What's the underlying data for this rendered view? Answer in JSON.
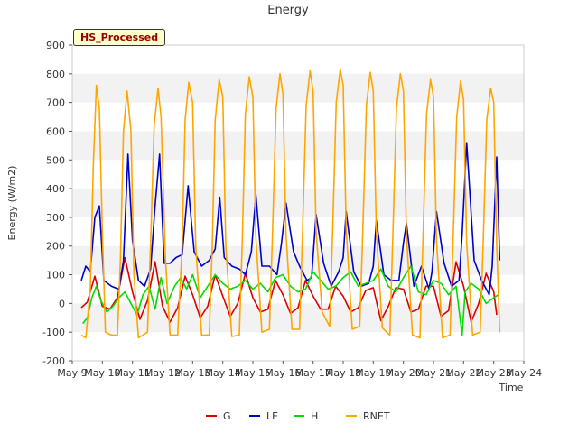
{
  "chart_data": {
    "type": "line",
    "title": "Energy",
    "xlabel": "Time",
    "ylabel": "Energy (W/m2)",
    "tag": "HS_Processed",
    "xlim": [
      9,
      24
    ],
    "ylim": [
      -200,
      900
    ],
    "x_ticks": [
      {
        "value": 9,
        "label": "May 9"
      },
      {
        "value": 10,
        "label": "May 10"
      },
      {
        "value": 11,
        "label": "May 11"
      },
      {
        "value": 12,
        "label": "May 12"
      },
      {
        "value": 13,
        "label": "May 13"
      },
      {
        "value": 14,
        "label": "May 14"
      },
      {
        "value": 15,
        "label": "May 15"
      },
      {
        "value": 16,
        "label": "May 16"
      },
      {
        "value": 17,
        "label": "May 17"
      },
      {
        "value": 18,
        "label": "May 18"
      },
      {
        "value": 19,
        "label": "May 19"
      },
      {
        "value": 20,
        "label": "May 20"
      },
      {
        "value": 21,
        "label": "May 21"
      },
      {
        "value": 22,
        "label": "May 22"
      },
      {
        "value": 23,
        "label": "May 23"
      },
      {
        "value": 24,
        "label": "May 24"
      }
    ],
    "y_ticks": [
      -200,
      -100,
      0,
      100,
      200,
      300,
      400,
      500,
      600,
      700,
      800,
      900
    ],
    "grid": "horizontal bands",
    "band_color": "#f2f2f2",
    "legend_position": "bottom",
    "series": [
      {
        "name": "G",
        "color": "#dd0000",
        "x": [
          9.3,
          9.5,
          9.75,
          10.0,
          10.25,
          10.5,
          10.75,
          11.0,
          11.25,
          11.5,
          11.75,
          12.0,
          12.25,
          12.5,
          12.75,
          13.0,
          13.25,
          13.5,
          13.75,
          14.0,
          14.25,
          14.5,
          14.75,
          15.0,
          15.25,
          15.5,
          15.75,
          16.0,
          16.25,
          16.5,
          16.75,
          17.0,
          17.25,
          17.5,
          17.75,
          18.0,
          18.25,
          18.5,
          18.75,
          19.0,
          19.25,
          19.5,
          19.75,
          20.0,
          20.25,
          20.5,
          20.75,
          21.0,
          21.25,
          21.5,
          21.75,
          22.0,
          22.25,
          22.5,
          22.75,
          23.0,
          23.1
        ],
        "y": [
          -15,
          5,
          95,
          -10,
          -20,
          20,
          160,
          40,
          -55,
          10,
          145,
          -10,
          -65,
          -15,
          95,
          30,
          -50,
          -10,
          100,
          25,
          -45,
          0,
          105,
          20,
          -30,
          -20,
          80,
          30,
          -35,
          -15,
          80,
          25,
          -20,
          -20,
          60,
          25,
          -30,
          -15,
          45,
          55,
          -60,
          -10,
          55,
          50,
          -30,
          -20,
          60,
          60,
          -45,
          -25,
          145,
          60,
          -65,
          0,
          105,
          40,
          -40
        ]
      },
      {
        "name": "LE",
        "color": "#0000cc",
        "x": [
          9.3,
          9.45,
          9.6,
          9.75,
          9.9,
          10.05,
          10.3,
          10.55,
          10.7,
          10.85,
          11.0,
          11.2,
          11.4,
          11.6,
          11.75,
          11.9,
          12.05,
          12.25,
          12.45,
          12.65,
          12.85,
          13.05,
          13.3,
          13.55,
          13.75,
          13.9,
          14.05,
          14.3,
          14.55,
          14.75,
          14.95,
          15.1,
          15.3,
          15.55,
          15.8,
          15.95,
          16.1,
          16.35,
          16.55,
          16.8,
          16.95,
          17.1,
          17.35,
          17.6,
          17.85,
          18.0,
          18.1,
          18.35,
          18.6,
          18.85,
          19.0,
          19.1,
          19.35,
          19.6,
          19.85,
          20.0,
          20.1,
          20.35,
          20.6,
          20.85,
          20.95,
          21.1,
          21.35,
          21.6,
          21.85,
          21.95,
          22.1,
          22.35,
          22.6,
          22.85,
          22.95,
          23.1,
          23.2
        ],
        "y": [
          80,
          130,
          110,
          300,
          340,
          80,
          60,
          50,
          150,
          520,
          220,
          80,
          60,
          120,
          340,
          520,
          140,
          140,
          160,
          170,
          410,
          180,
          130,
          150,
          190,
          370,
          160,
          130,
          120,
          100,
          180,
          380,
          130,
          130,
          100,
          210,
          350,
          180,
          130,
          80,
          90,
          310,
          140,
          60,
          110,
          160,
          320,
          110,
          60,
          70,
          130,
          290,
          100,
          80,
          80,
          210,
          280,
          60,
          130,
          50,
          110,
          320,
          140,
          60,
          80,
          240,
          560,
          150,
          80,
          30,
          130,
          510,
          150
        ]
      },
      {
        "name": "H",
        "color": "#00dd00",
        "x": [
          9.35,
          9.5,
          9.65,
          9.8,
          9.95,
          10.15,
          10.35,
          10.55,
          10.75,
          10.95,
          11.15,
          11.35,
          11.55,
          11.75,
          11.95,
          12.15,
          12.4,
          12.6,
          12.8,
          13.0,
          13.25,
          13.5,
          13.75,
          14.0,
          14.25,
          14.5,
          14.75,
          15.0,
          15.25,
          15.5,
          15.75,
          16.0,
          16.25,
          16.5,
          16.75,
          17.0,
          17.25,
          17.5,
          17.75,
          18.0,
          18.25,
          18.5,
          18.75,
          19.0,
          19.25,
          19.5,
          19.75,
          20.0,
          20.25,
          20.5,
          20.75,
          21.0,
          21.25,
          21.5,
          21.75,
          21.95,
          22.05,
          22.25,
          22.5,
          22.75,
          23.0,
          23.15
        ],
        "y": [
          -70,
          -50,
          20,
          60,
          10,
          -30,
          -10,
          20,
          40,
          0,
          -40,
          30,
          60,
          -20,
          90,
          0,
          60,
          90,
          50,
          100,
          20,
          60,
          100,
          70,
          50,
          60,
          80,
          50,
          70,
          40,
          90,
          100,
          60,
          40,
          50,
          110,
          80,
          50,
          60,
          90,
          110,
          60,
          70,
          80,
          120,
          60,
          40,
          90,
          130,
          40,
          30,
          80,
          70,
          30,
          60,
          -110,
          40,
          70,
          50,
          0,
          20,
          30
        ]
      },
      {
        "name": "RNET",
        "color": "#ffa500",
        "x": [
          9.3,
          9.45,
          9.6,
          9.7,
          9.8,
          9.9,
          10.0,
          10.1,
          10.3,
          10.5,
          10.6,
          10.7,
          10.82,
          10.95,
          11.05,
          11.2,
          11.5,
          11.6,
          11.72,
          11.85,
          11.95,
          12.1,
          12.25,
          12.5,
          12.65,
          12.75,
          12.87,
          13.0,
          13.1,
          13.3,
          13.55,
          13.65,
          13.75,
          13.88,
          14.0,
          14.1,
          14.3,
          14.55,
          14.65,
          14.75,
          14.88,
          15.0,
          15.1,
          15.3,
          15.55,
          15.65,
          15.77,
          15.9,
          16.0,
          16.1,
          16.3,
          16.55,
          16.65,
          16.77,
          16.9,
          17.0,
          17.1,
          17.3,
          17.55,
          17.65,
          17.77,
          17.9,
          18.0,
          18.1,
          18.3,
          18.55,
          18.65,
          18.77,
          18.9,
          19.0,
          19.1,
          19.3,
          19.55,
          19.65,
          19.77,
          19.9,
          20.0,
          20.1,
          20.3,
          20.55,
          20.65,
          20.77,
          20.9,
          21.0,
          21.1,
          21.3,
          21.55,
          21.65,
          21.77,
          21.9,
          22.0,
          22.1,
          22.3,
          22.55,
          22.65,
          22.77,
          22.9,
          23.0,
          23.1,
          23.2
        ],
        "y": [
          -110,
          -120,
          50,
          480,
          760,
          680,
          250,
          -100,
          -110,
          -110,
          150,
          600,
          740,
          600,
          100,
          -120,
          -100,
          200,
          620,
          750,
          650,
          150,
          -110,
          -110,
          200,
          640,
          770,
          700,
          200,
          -110,
          -110,
          200,
          640,
          780,
          720,
          200,
          -115,
          -110,
          220,
          660,
          790,
          720,
          230,
          -100,
          -90,
          240,
          680,
          800,
          730,
          240,
          -90,
          -90,
          250,
          690,
          810,
          740,
          250,
          -30,
          -80,
          250,
          700,
          815,
          760,
          260,
          -90,
          -80,
          250,
          690,
          805,
          740,
          250,
          -85,
          -110,
          240,
          680,
          800,
          740,
          240,
          -110,
          -120,
          220,
          660,
          780,
          720,
          220,
          -120,
          -110,
          220,
          650,
          775,
          710,
          210,
          -110,
          -100,
          210,
          640,
          750,
          700,
          200,
          -100
        ]
      }
    ]
  }
}
